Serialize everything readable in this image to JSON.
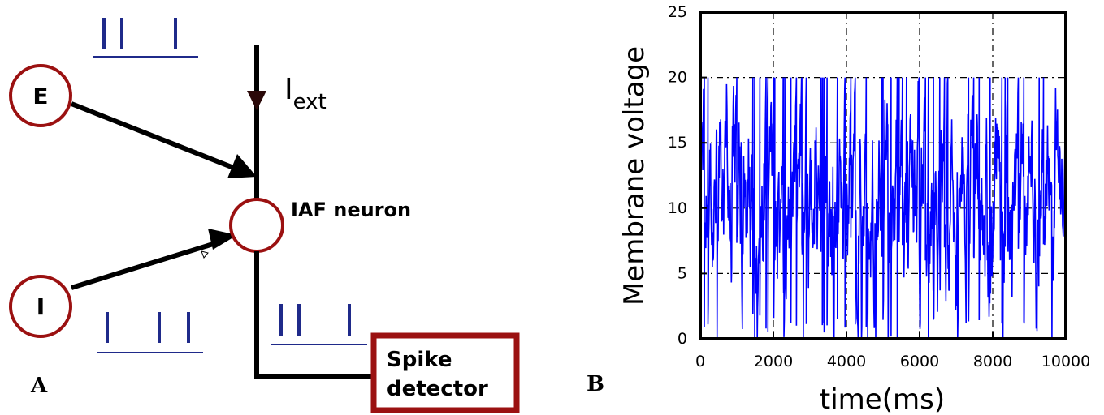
{
  "panel_a": {
    "label": "A",
    "excitatory_node": "E",
    "inhibitory_node": "I",
    "external_current": {
      "base": "I",
      "subscript": "ext"
    },
    "neuron_label": "IAF neuron",
    "detector_label_line1": "Spike",
    "detector_label_line2": "detector",
    "colors": {
      "node_stroke": "#9b1111",
      "spike": "#1f2a8a",
      "wire": "#000000"
    }
  },
  "panel_b": {
    "label": "B"
  },
  "chart_data": {
    "type": "line",
    "title": "",
    "xlabel": "time(ms)",
    "ylabel": "Membrane voltage",
    "xlim": [
      0,
      10000
    ],
    "ylim": [
      0,
      25
    ],
    "xticks": [
      0,
      2000,
      4000,
      6000,
      8000,
      10000
    ],
    "yticks": [
      0,
      5,
      10,
      15,
      20,
      25
    ],
    "grid": true,
    "grid_style": "dash-dot",
    "threshold_value": 20,
    "reset_value": 0,
    "series_color": "#0000ff",
    "series": [
      {
        "name": "",
        "description_points_ms_step": 10,
        "x_start": 0,
        "x_end": 10000
      }
    ]
  }
}
